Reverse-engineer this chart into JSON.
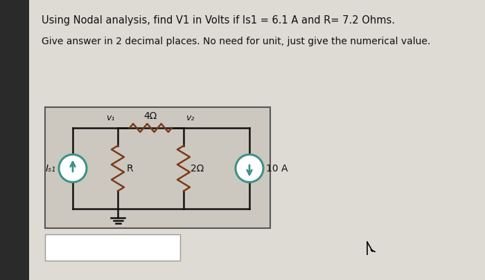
{
  "title_line1": "Using Nodal analysis, find V1 in Volts if Is1 = 6.1 A and R= 7.2 Ohms.",
  "title_line2": "Give answer in 2 decimal places. No need for unit, just give the numerical value.",
  "left_bar_color": "#2a2a2a",
  "paper_color": "#dedad4",
  "circuit_box_color": "#ccc8bf",
  "teal_color": "#3d9188",
  "resistor_color": "#7a3a1a",
  "wire_color": "#111111",
  "text_color": "#111111",
  "node1_label": "v₁",
  "node2_label": "v₂",
  "res1_label": "4Ω",
  "res2_label": "R",
  "res3_label": "2Ω",
  "is1_label": "Iₛ₁",
  "is2_label": "10 A",
  "figw": 7.0,
  "figh": 4.05,
  "dpi": 100
}
